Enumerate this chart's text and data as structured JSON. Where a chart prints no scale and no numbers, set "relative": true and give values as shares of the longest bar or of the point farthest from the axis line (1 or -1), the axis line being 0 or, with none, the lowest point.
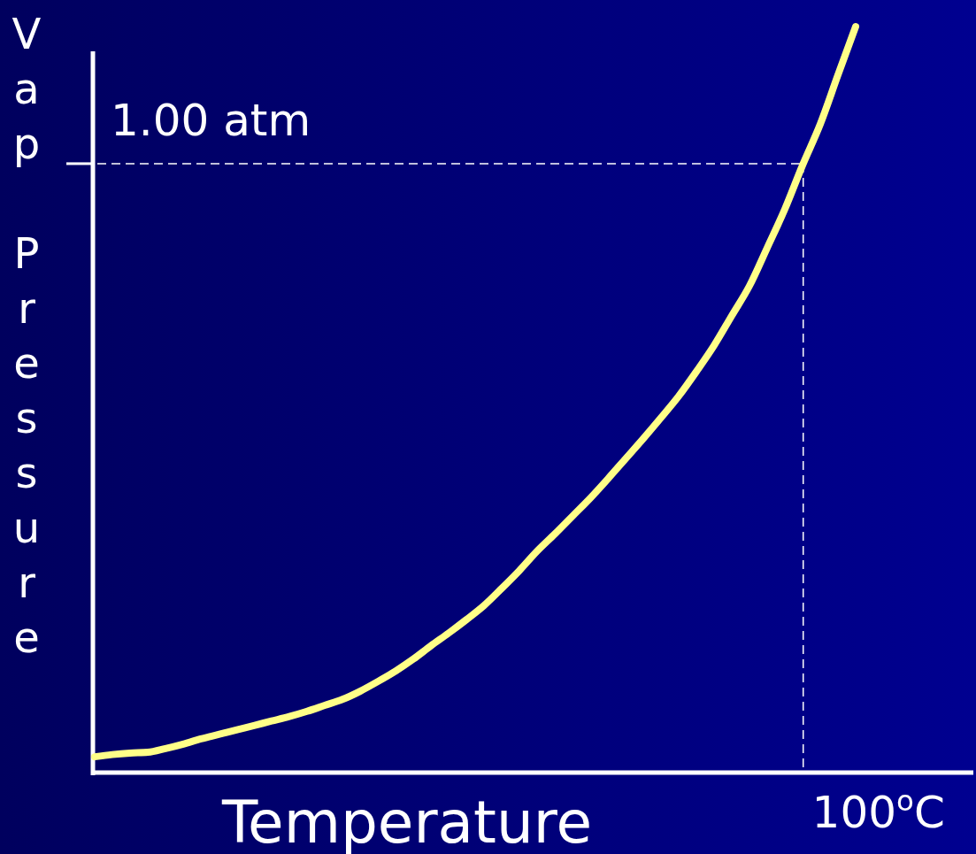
{
  "chart_data": {
    "type": "line",
    "relative": true,
    "xlabel": "Temperature",
    "ylabel": "Vap Pressure",
    "categories": [
      null,
      null,
      null,
      null,
      null,
      null,
      null,
      null,
      null,
      null,
      null,
      null,
      null,
      null,
      null,
      null,
      null,
      null,
      null,
      null,
      null,
      null,
      null,
      null,
      null,
      null,
      null,
      null,
      null,
      null,
      null,
      null,
      null,
      null,
      null,
      null,
      null,
      null,
      null,
      null,
      null,
      null,
      null,
      null
    ],
    "series": [
      {
        "color": "#ffff88",
        "values": [
          0.02,
          0.023,
          0.025,
          0.026,
          0.031,
          0.037,
          0.044,
          0.05,
          0.056,
          0.062,
          0.068,
          0.074,
          0.081,
          0.089,
          0.097,
          0.108,
          0.121,
          0.135,
          0.151,
          0.169,
          0.186,
          0.204,
          0.223,
          0.246,
          0.27,
          0.296,
          0.319,
          0.343,
          0.367,
          0.393,
          0.42,
          0.447,
          0.475,
          0.504,
          0.537,
          0.572,
          0.612,
          0.652,
          0.703,
          0.755,
          0.814,
          0.869,
          0.935,
          1
        ]
      }
    ],
    "ref_lines": [
      {
        "axis": "y",
        "value": 0.816,
        "label": "1.00 atm",
        "color": "#ffffff",
        "line_style": "dashed"
      }
    ],
    "annotations": [
      "100$^{o}$C"
    ],
    "line_style": "solid"
  }
}
